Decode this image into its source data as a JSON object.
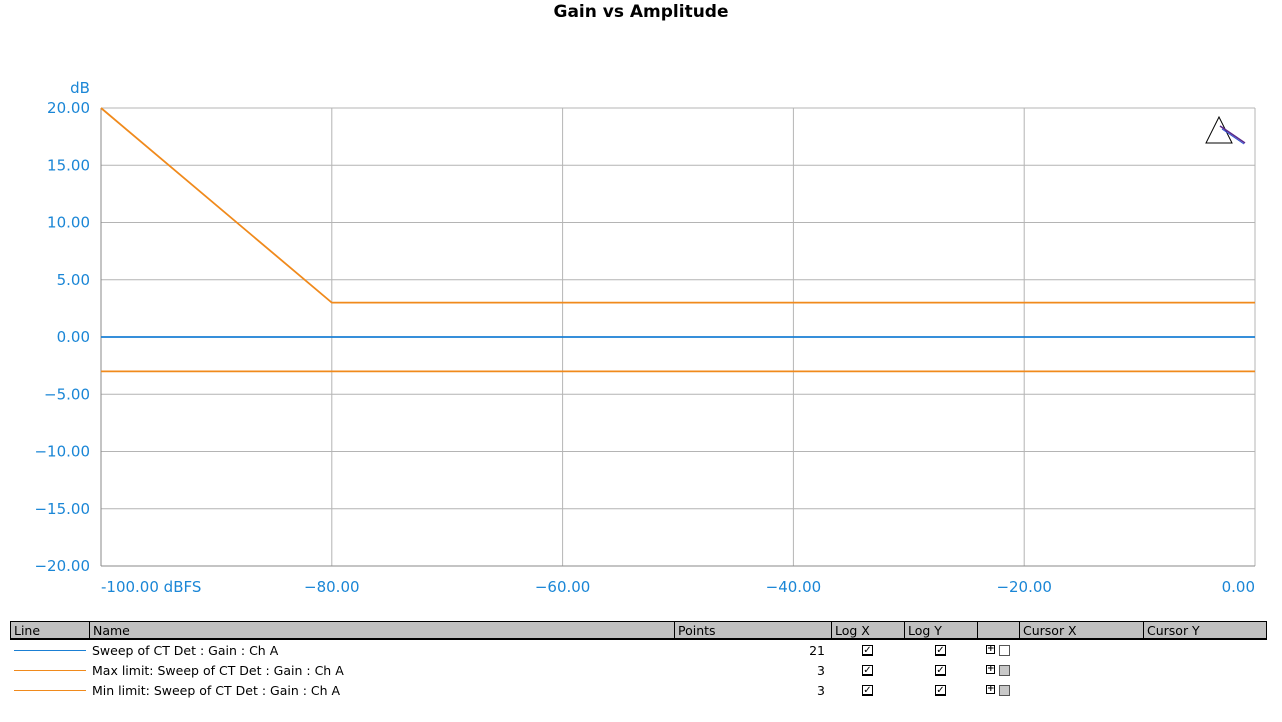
{
  "chart_data": {
    "type": "line",
    "title": "Gain vs Amplitude",
    "ylabel": "dB",
    "xunit": "dBFS",
    "xlim": [
      -100,
      0
    ],
    "ylim": [
      -20,
      20
    ],
    "x_ticks": [
      -100,
      -80,
      -60,
      -40,
      -20,
      0
    ],
    "y_ticks": [
      20,
      15,
      10,
      5,
      0,
      -5,
      -10,
      -15,
      -20
    ],
    "x_tick_labels": [
      "-100.00 dBFS",
      "−80.00",
      "−60.00",
      "−40.00",
      "−20.00",
      "0.00"
    ],
    "y_tick_labels": [
      "20.00",
      "15.00",
      "10.00",
      "5.00",
      "0.00",
      "−5.00",
      "−10.00",
      "−15.00",
      "−20.00"
    ],
    "grid": true,
    "series": [
      {
        "name": "Sweep of CT Det : Gain : Ch A",
        "color": "#1a7fd4",
        "x": [
          -100,
          -95,
          -90,
          -85,
          -80,
          -75,
          -70,
          -65,
          -60,
          -55,
          -50,
          -45,
          -40,
          -35,
          -30,
          -25,
          -20,
          -15,
          -10,
          -5,
          0
        ],
        "y": [
          0,
          0,
          0,
          0,
          0,
          0,
          0,
          0,
          0,
          0,
          0,
          0,
          0,
          0,
          0,
          0,
          0,
          0,
          0,
          0,
          0
        ]
      },
      {
        "name": "Max limit: Sweep of CT Det : Gain : Ch A",
        "color": "#f08a1c",
        "x": [
          -100,
          -80,
          0
        ],
        "y": [
          20,
          3,
          3
        ]
      },
      {
        "name": "Min limit: Sweep of CT Det : Gain : Ch A",
        "color": "#f08a1c",
        "x": [
          -100,
          -80,
          0
        ],
        "y": [
          -3,
          -3,
          -3
        ]
      }
    ]
  },
  "legend": {
    "headers": {
      "line": "Line",
      "name": "Name",
      "points": "Points",
      "logx": "Log X",
      "logy": "Log Y",
      "blank": "",
      "cursorx": "Cursor X",
      "cursory": "Cursor Y"
    },
    "rows": [
      {
        "name": "Sweep of CT Det : Gain : Ch A",
        "points": "21",
        "color": "#1a7fd4",
        "cursor_enabled": true
      },
      {
        "name": "Max limit: Sweep of CT Det : Gain : Ch A",
        "points": "3",
        "color": "#f08a1c",
        "cursor_enabled": false
      },
      {
        "name": "Min limit: Sweep of CT Det : Gain : Ch A",
        "points": "3",
        "color": "#f08a1c",
        "cursor_enabled": false
      }
    ]
  },
  "icons": {
    "corner": "triangle-pen-icon",
    "check": "✓",
    "expand": "+"
  }
}
